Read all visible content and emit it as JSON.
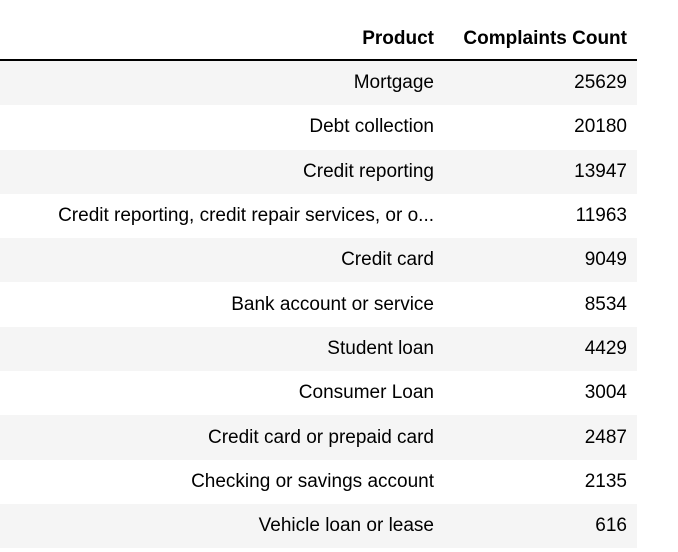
{
  "table": {
    "headers": {
      "product": "Product",
      "count": "Complaints Count"
    },
    "rows": [
      {
        "product": "Mortgage",
        "count": "25629"
      },
      {
        "product": "Debt collection",
        "count": "20180"
      },
      {
        "product": "Credit reporting",
        "count": "13947"
      },
      {
        "product": "Credit reporting, credit repair services, or o...",
        "count": "11963"
      },
      {
        "product": "Credit card",
        "count": "9049"
      },
      {
        "product": "Bank account or service",
        "count": "8534"
      },
      {
        "product": "Student loan",
        "count": "4429"
      },
      {
        "product": "Consumer Loan",
        "count": "3004"
      },
      {
        "product": "Credit card or prepaid card",
        "count": "2487"
      },
      {
        "product": "Checking or savings account",
        "count": "2135"
      },
      {
        "product": "Vehicle loan or lease",
        "count": "616"
      }
    ]
  },
  "colors": {
    "stripe": "#f5f5f5",
    "header_rule": "#000000"
  }
}
